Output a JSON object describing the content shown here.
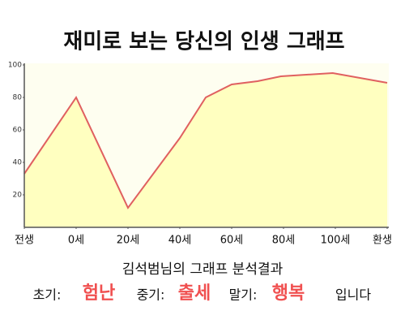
{
  "chart_data": {
    "type": "area",
    "title": "재미로 보는 당신의 인생 그래프",
    "x": [
      -20,
      0,
      20,
      40,
      50,
      60,
      70,
      79,
      99,
      120
    ],
    "values": [
      33,
      80,
      12,
      55,
      80,
      88,
      90,
      93,
      95,
      89
    ],
    "color": "#e06060",
    "fill": "#ffffc0",
    "background": "#fefef0",
    "xlim": [
      -20,
      120
    ],
    "xticks": [
      {
        "value": -20,
        "label": "전생"
      },
      {
        "value": 0,
        "label": "0세"
      },
      {
        "value": 20,
        "label": "20세"
      },
      {
        "value": 40,
        "label": "40세"
      },
      {
        "value": 60,
        "label": "60세"
      },
      {
        "value": 80,
        "label": "80세"
      },
      {
        "value": 100,
        "label": "100세"
      },
      {
        "value": 120,
        "label": "환생"
      }
    ],
    "ylim": [
      0,
      100
    ],
    "yticks": [
      20,
      40,
      60,
      80,
      100
    ],
    "grid": false
  },
  "summary": {
    "heading": "김석범님의 그래프 분석결과",
    "items": [
      {
        "label": "초기:",
        "value": "험난"
      },
      {
        "label": "중기:",
        "value": "출세"
      },
      {
        "label": "말기:",
        "value": "행복"
      }
    ],
    "suffix": "입니다"
  }
}
